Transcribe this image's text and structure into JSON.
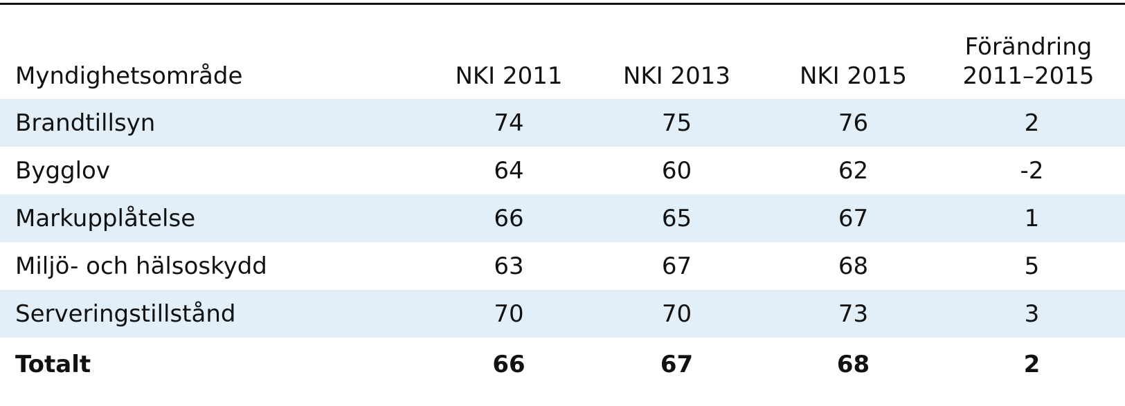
{
  "chart_data": {
    "type": "table",
    "columns": {
      "area": "Myndighetsområde",
      "y2011": "NKI 2011",
      "y2013": "NKI 2013",
      "y2015": "NKI 2015",
      "change_line1": "Förändring",
      "change_line2": "2011–2015"
    },
    "rows": [
      {
        "area": "Brandtillsyn",
        "y2011": "74",
        "y2013": "75",
        "y2015": "76",
        "change": "2"
      },
      {
        "area": "Bygglov",
        "y2011": "64",
        "y2013": "60",
        "y2015": "62",
        "change": "-2"
      },
      {
        "area": "Markupplåtelse",
        "y2011": "66",
        "y2013": "65",
        "y2015": "67",
        "change": "1"
      },
      {
        "area": "Miljö- och hälsoskydd",
        "y2011": "63",
        "y2013": "67",
        "y2015": "68",
        "change": "5"
      },
      {
        "area": "Serveringstillstånd",
        "y2011": "70",
        "y2013": "70",
        "y2015": "73",
        "change": "3"
      }
    ],
    "total": {
      "area": "Totalt",
      "y2011": "66",
      "y2013": "67",
      "y2015": "68",
      "change": "2"
    },
    "colors": {
      "row_shade": "#e2eef8",
      "rule": "#111111",
      "text": "#111111"
    }
  }
}
